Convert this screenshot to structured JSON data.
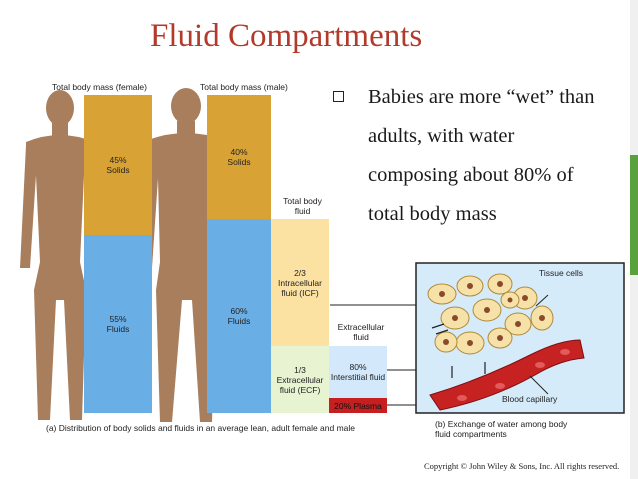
{
  "title": "Fluid Compartments",
  "bullet": "Babies are more “wet” than adults, with water composing about 80% of total body mass",
  "panel_a": {
    "female_header": "Total body mass (female)",
    "male_header": "Total body mass (male)",
    "female_solids": {
      "percent": "45%",
      "label": "Solids"
    },
    "female_fluids": {
      "percent": "55%",
      "label": "Fluids"
    },
    "male_solids": {
      "percent": "40%",
      "label": "Solids"
    },
    "male_fluids": {
      "percent": "60%",
      "label": "Fluids"
    },
    "total_fluid_header": "Total body fluid",
    "icf": {
      "fraction": "2/3",
      "label": "Intracellular fluid (ICF)"
    },
    "ecf": {
      "fraction": "1/3",
      "label": "Extracellular fluid (ECF)"
    },
    "extracellular_header": "Extracellular fluid",
    "interstitial": {
      "percent": "80%",
      "label": "Interstitial fluid"
    },
    "plasma": "20% Plasma",
    "caption": "(a) Distribution of body solids and fluids in an average lean, adult female and male"
  },
  "panel_b": {
    "tissue_cells_label": "Tissue cells",
    "capillary_label": "Blood capillary",
    "caption": "(b) Exchange of water among body fluid compartments"
  },
  "copyright": "Copyright © John Wiley & Sons, Inc. All rights reserved.",
  "colors": {
    "title": "#b23a2b",
    "solids": "#d9a235",
    "fluids": "#6aaee6",
    "icf": "#fbe2a2",
    "ecf": "#e7f3d1",
    "interstitial": "#d3e8fb",
    "plasma": "#c61f1f",
    "silhouette": "#a87e5c",
    "accent": "#58a23d"
  }
}
